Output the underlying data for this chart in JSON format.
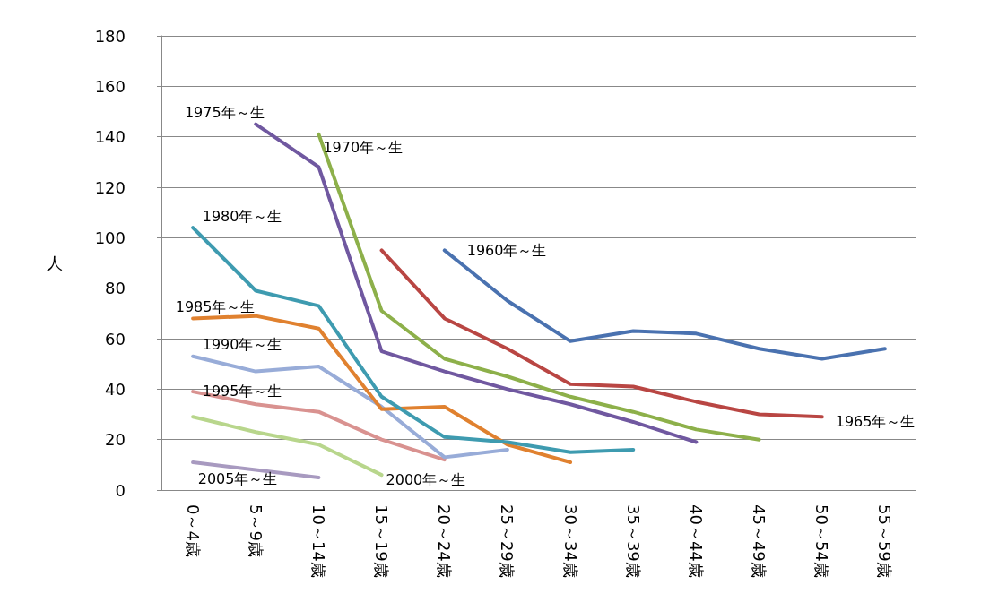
{
  "chart_data": {
    "type": "line",
    "ylabel": "人",
    "categories": [
      "0～4歳",
      "5～9歳",
      "10～14歳",
      "15～19歳",
      "20～24歳",
      "25～29歳",
      "30～34歳",
      "35～39歳",
      "40～44歳",
      "45～49歳",
      "50～54歳",
      "55～59歳"
    ],
    "ylim": [
      0,
      180
    ],
    "yticks": [
      0,
      20,
      40,
      60,
      80,
      100,
      120,
      140,
      160,
      180
    ],
    "grid": "y",
    "legend": false,
    "marker": "none",
    "line_style": "solid",
    "series": [
      {
        "name": "1960年～生",
        "color": "#4a72b0",
        "values": [
          null,
          null,
          null,
          null,
          95,
          75,
          59,
          63,
          62,
          56,
          52,
          56
        ]
      },
      {
        "name": "1965年～生",
        "color": "#b94643",
        "values": [
          null,
          null,
          null,
          95,
          68,
          56,
          42,
          41,
          35,
          30,
          29,
          null
        ]
      },
      {
        "name": "1970年～生",
        "color": "#8db04a",
        "values": [
          null,
          null,
          141,
          71,
          52,
          45,
          37,
          31,
          24,
          20,
          null,
          null
        ]
      },
      {
        "name": "1975年～生",
        "color": "#7058a0",
        "values": [
          null,
          145,
          128,
          55,
          47,
          40,
          34,
          27,
          19,
          null,
          null,
          null
        ]
      },
      {
        "name": "1980年～生",
        "color": "#3e9bb0",
        "values": [
          104,
          79,
          73,
          37,
          21,
          19,
          15,
          16,
          null,
          null,
          null,
          null
        ]
      },
      {
        "name": "1985年～生",
        "color": "#e0812f",
        "values": [
          68,
          69,
          64,
          32,
          33,
          18,
          11,
          null,
          null,
          null,
          null,
          null
        ]
      },
      {
        "name": "1990年～生",
        "color": "#98acd8",
        "values": [
          53,
          47,
          49,
          33,
          13,
          16,
          null,
          null,
          null,
          null,
          null,
          null
        ]
      },
      {
        "name": "1995年～生",
        "color": "#d99290",
        "values": [
          39,
          34,
          31,
          20,
          12,
          null,
          null,
          null,
          null,
          null,
          null,
          null
        ]
      },
      {
        "name": "2000年～生",
        "color": "#b8d68c",
        "values": [
          29,
          23,
          18,
          6,
          null,
          null,
          null,
          null,
          null,
          null,
          null,
          null
        ]
      },
      {
        "name": "2005年～生",
        "color": "#a89ac0",
        "values": [
          11,
          8,
          5,
          null,
          null,
          null,
          null,
          null,
          null,
          null,
          null,
          null
        ]
      }
    ]
  }
}
